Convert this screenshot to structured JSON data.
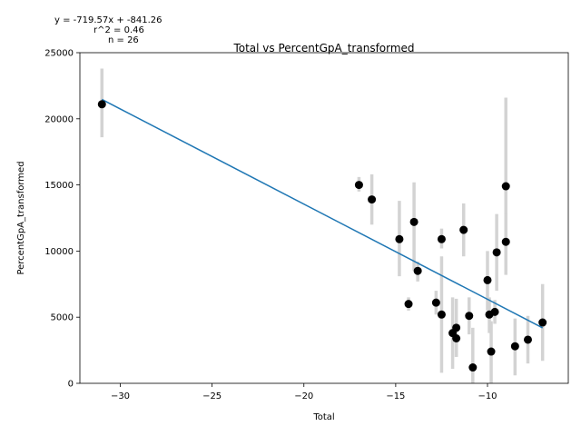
{
  "chart_data": {
    "type": "scatter",
    "title": "Total vs PercentGpA_transformed",
    "xlabel": "Total",
    "ylabel": "PercentGpA_transformed",
    "xlim": [
      -32.2,
      -5.6
    ],
    "ylim": [
      0,
      25000
    ],
    "xticks": [
      -30,
      -25,
      -20,
      -15,
      -10
    ],
    "xtick_labels": [
      "−30",
      "−25",
      "−20",
      "−15",
      "−10"
    ],
    "yticks": [
      0,
      5000,
      10000,
      15000,
      20000,
      25000
    ],
    "ytick_labels": [
      "0",
      "5000",
      "10000",
      "15000",
      "20000",
      "25000"
    ],
    "grid": false,
    "annotations": [
      "y = -719.57x + -841.26",
      "r^2 = 0.46",
      "n = 26"
    ],
    "fit_line": {
      "slope": -719.57,
      "intercept": -841.26,
      "x_range": [
        -31.0,
        -7.0
      ],
      "color": "#1f77b4"
    },
    "points_color": "#000000",
    "errorbar_color": "#d3d3d3",
    "points": [
      {
        "x": -31.0,
        "y": 21100,
        "err_low": 18600,
        "err_high": 23800
      },
      {
        "x": -17.0,
        "y": 15000,
        "err_low": 14500,
        "err_high": 15600
      },
      {
        "x": -16.3,
        "y": 13900,
        "err_low": 12000,
        "err_high": 15800
      },
      {
        "x": -14.0,
        "y": 12200,
        "err_low": 8500,
        "err_high": 15200
      },
      {
        "x": -14.8,
        "y": 10900,
        "err_low": 8100,
        "err_high": 13800
      },
      {
        "x": -13.8,
        "y": 8500,
        "err_low": 7700,
        "err_high": 9200
      },
      {
        "x": -14.3,
        "y": 6000,
        "err_low": 5500,
        "err_high": 6500
      },
      {
        "x": -12.5,
        "y": 10900,
        "err_low": 10200,
        "err_high": 11700
      },
      {
        "x": -11.3,
        "y": 11600,
        "err_low": 9600,
        "err_high": 13600
      },
      {
        "x": -12.8,
        "y": 6100,
        "err_low": 5200,
        "err_high": 7000
      },
      {
        "x": -12.5,
        "y": 5200,
        "err_low": 800,
        "err_high": 9600
      },
      {
        "x": -11.9,
        "y": 3800,
        "err_low": 1100,
        "err_high": 6500
      },
      {
        "x": -11.7,
        "y": 4200,
        "err_low": 2000,
        "err_high": 6400
      },
      {
        "x": -11.7,
        "y": 3400,
        "err_low": 2000,
        "err_high": 4700
      },
      {
        "x": -11.0,
        "y": 5100,
        "err_low": 3700,
        "err_high": 6500
      },
      {
        "x": -10.8,
        "y": 1200,
        "err_low": 0,
        "err_high": 4200
      },
      {
        "x": -10.0,
        "y": 7800,
        "err_low": 5500,
        "err_high": 10000
      },
      {
        "x": -9.9,
        "y": 5200,
        "err_low": 3800,
        "err_high": 6500
      },
      {
        "x": -9.8,
        "y": 2400,
        "err_low": 0,
        "err_high": 4700
      },
      {
        "x": -9.6,
        "y": 5400,
        "err_low": 4500,
        "err_high": 6300
      },
      {
        "x": -9.5,
        "y": 9900,
        "err_low": 7000,
        "err_high": 12800
      },
      {
        "x": -9.0,
        "y": 14900,
        "err_low": 8200,
        "err_high": 21600
      },
      {
        "x": -9.0,
        "y": 10700,
        "err_low": 8500,
        "err_high": 12800
      },
      {
        "x": -8.5,
        "y": 2800,
        "err_low": 600,
        "err_high": 4900
      },
      {
        "x": -7.8,
        "y": 3300,
        "err_low": 1500,
        "err_high": 5100
      },
      {
        "x": -7.0,
        "y": 4600,
        "err_low": 1700,
        "err_high": 7500
      }
    ]
  }
}
